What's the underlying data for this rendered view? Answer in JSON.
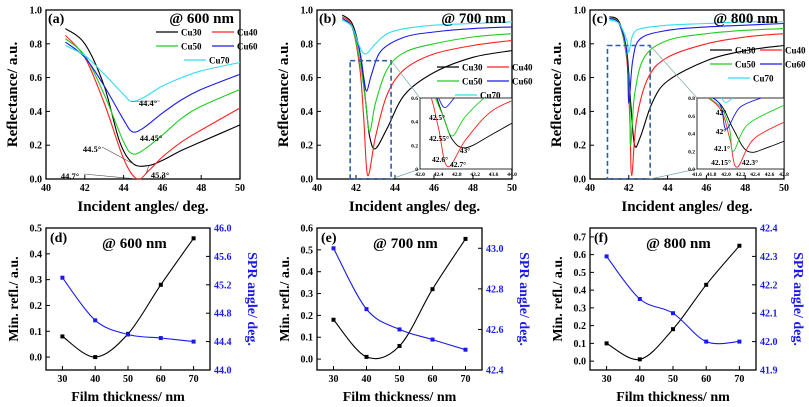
{
  "colors": {
    "Cu30": "#000000",
    "Cu40": "#ff2020",
    "Cu50": "#22cc22",
    "Cu60": "#1a1aee",
    "Cu70": "#33ddee",
    "refl": "#000000",
    "spr": "#1a1aee",
    "inset_box": "#2f5f9f"
  },
  "chart_data": [
    {
      "id": "a",
      "type": "line",
      "label": "(a)",
      "title": "@ 600 nm",
      "xlabel": "Incident angles/ deg.",
      "ylabel": "Reflectance/ a.u.",
      "xlim": [
        40,
        50
      ],
      "ylim": [
        0,
        1.0
      ],
      "xticks": [
        40,
        42,
        44,
        46,
        48,
        50
      ],
      "yticks": [
        0.0,
        0.2,
        0.4,
        0.6,
        0.8,
        1.0
      ],
      "series": [
        {
          "name": "Cu30",
          "x": [
            41,
            42,
            43,
            43.8,
            44.5,
            45.3,
            46,
            47,
            48,
            50
          ],
          "y": [
            0.89,
            0.8,
            0.55,
            0.22,
            0.09,
            0.08,
            0.11,
            0.17,
            0.22,
            0.32
          ]
        },
        {
          "name": "Cu40",
          "x": [
            41,
            42,
            43,
            44,
            44.7,
            45.3,
            46,
            47,
            48,
            50
          ],
          "y": [
            0.85,
            0.72,
            0.45,
            0.12,
            0.0,
            0.05,
            0.13,
            0.22,
            0.29,
            0.42
          ]
        },
        {
          "name": "Cu50",
          "x": [
            41,
            42,
            43,
            44,
            44.45,
            45,
            46,
            47,
            48,
            50
          ],
          "y": [
            0.83,
            0.73,
            0.5,
            0.22,
            0.15,
            0.17,
            0.26,
            0.36,
            0.43,
            0.53
          ]
        },
        {
          "name": "Cu60",
          "x": [
            41,
            42,
            43,
            44,
            44.45,
            45,
            46,
            47,
            48,
            50
          ],
          "y": [
            0.81,
            0.72,
            0.55,
            0.35,
            0.28,
            0.3,
            0.39,
            0.47,
            0.53,
            0.62
          ]
        },
        {
          "name": "Cu70",
          "x": [
            41,
            42,
            43,
            44,
            44.4,
            45,
            46,
            47,
            48,
            50
          ],
          "y": [
            0.79,
            0.73,
            0.62,
            0.5,
            0.46,
            0.48,
            0.55,
            0.6,
            0.64,
            0.69
          ]
        }
      ],
      "legend": [
        "Cu30",
        "Cu40",
        "Cu50",
        "Cu60",
        "Cu70"
      ],
      "annotations": [
        {
          "text": "44.4°",
          "x": 44.4,
          "y": 0.43
        },
        {
          "text": "44.45°",
          "x": 44.45,
          "y": 0.25
        },
        {
          "text": "44.5°",
          "x": 44.5,
          "y": 0.14
        },
        {
          "text": "44.7°",
          "x": 44.7,
          "y": 0.03
        },
        {
          "text": "45.3°",
          "x": 45.3,
          "y": 0.03
        }
      ]
    },
    {
      "id": "b",
      "type": "line",
      "label": "(b)",
      "title": "@ 700 nm",
      "xlabel": "Incident angles/ deg.",
      "ylabel": "Reflectance/ a.u.",
      "xlim": [
        40,
        50
      ],
      "ylim": [
        0,
        1.0
      ],
      "xticks": [
        40,
        42,
        44,
        46,
        48,
        50
      ],
      "yticks": [
        0.0,
        0.2,
        0.4,
        0.6,
        0.8,
        1.0
      ],
      "series": [
        {
          "name": "Cu30",
          "x": [
            41.3,
            41.8,
            42.2,
            42.5,
            42.7,
            43,
            43.6,
            44.5,
            46,
            48,
            50
          ],
          "y": [
            0.97,
            0.92,
            0.75,
            0.45,
            0.25,
            0.18,
            0.3,
            0.5,
            0.63,
            0.72,
            0.76
          ]
        },
        {
          "name": "Cu40",
          "x": [
            41.3,
            41.8,
            42.2,
            42.4,
            42.6,
            43,
            43.6,
            44.5,
            46,
            48,
            50
          ],
          "y": [
            0.96,
            0.9,
            0.65,
            0.35,
            0.02,
            0.25,
            0.5,
            0.65,
            0.74,
            0.79,
            0.82
          ]
        },
        {
          "name": "Cu50",
          "x": [
            41.3,
            41.8,
            42.2,
            42.5,
            42.7,
            43,
            43.6,
            44.5,
            46,
            48,
            50
          ],
          "y": [
            0.95,
            0.9,
            0.7,
            0.45,
            0.28,
            0.45,
            0.65,
            0.75,
            0.8,
            0.84,
            0.86
          ]
        },
        {
          "name": "Cu60",
          "x": [
            41.3,
            41.8,
            42.2,
            42.4,
            42.55,
            42.8,
            43.3,
            44.5,
            46,
            48,
            50
          ],
          "y": [
            0.95,
            0.9,
            0.75,
            0.6,
            0.52,
            0.62,
            0.76,
            0.84,
            0.87,
            0.89,
            0.9
          ]
        },
        {
          "name": "Cu70",
          "x": [
            41.3,
            41.8,
            42.2,
            42.5,
            43,
            43.6,
            44.5,
            46,
            48,
            50
          ],
          "y": [
            0.94,
            0.9,
            0.78,
            0.74,
            0.8,
            0.86,
            0.89,
            0.91,
            0.92,
            0.93
          ]
        }
      ],
      "legend": [
        "Cu30",
        "Cu40",
        "Cu50",
        "Cu60",
        "Cu70"
      ],
      "inset": {
        "xlim": [
          42.0,
          44.0
        ],
        "ylim": [
          0,
          0.6
        ],
        "xticks": [
          "42.0",
          "42.4",
          "42.8",
          "43.2",
          "43.6",
          "44.0"
        ],
        "yticks": [
          "0",
          "0.2",
          "0.4",
          "0.6"
        ],
        "annotations": [
          "42.5°",
          "42.55°",
          "42.6°",
          "42.7°",
          "43°"
        ]
      }
    },
    {
      "id": "c",
      "type": "line",
      "label": "(c)",
      "title": "@ 800 nm",
      "xlabel": "Incident angles/ deg.",
      "ylabel": "Reflectance/ a.u.",
      "xlim": [
        40,
        50
      ],
      "ylim": [
        0,
        1.0
      ],
      "xticks": [
        40,
        42,
        44,
        46,
        48,
        50
      ],
      "yticks": [
        0.0,
        0.2,
        0.4,
        0.6,
        0.8,
        1.0
      ],
      "series": [
        {
          "name": "Cu30",
          "x": [
            41.0,
            41.5,
            41.9,
            42.1,
            42.3,
            42.6,
            43.2,
            44,
            46,
            48,
            50
          ],
          "y": [
            0.96,
            0.93,
            0.75,
            0.45,
            0.2,
            0.25,
            0.45,
            0.58,
            0.7,
            0.76,
            0.79
          ]
        },
        {
          "name": "Cu40",
          "x": [
            41.0,
            41.5,
            41.9,
            42.05,
            42.15,
            42.4,
            43,
            44,
            46,
            48,
            50
          ],
          "y": [
            0.95,
            0.92,
            0.7,
            0.35,
            0.02,
            0.35,
            0.6,
            0.72,
            0.8,
            0.84,
            0.86
          ]
        },
        {
          "name": "Cu50",
          "x": [
            41.0,
            41.5,
            41.9,
            42.05,
            42.1,
            42.3,
            42.8,
            44,
            46,
            48,
            50
          ],
          "y": [
            0.95,
            0.92,
            0.72,
            0.45,
            0.2,
            0.5,
            0.72,
            0.82,
            0.86,
            0.88,
            0.89
          ]
        },
        {
          "name": "Cu60",
          "x": [
            41.0,
            41.5,
            41.9,
            42.0,
            42.2,
            42.6,
            44,
            46,
            48,
            50
          ],
          "y": [
            0.95,
            0.92,
            0.75,
            0.45,
            0.7,
            0.83,
            0.88,
            0.9,
            0.91,
            0.92
          ]
        },
        {
          "name": "Cu70",
          "x": [
            41.0,
            41.5,
            41.9,
            42.0,
            42.2,
            42.6,
            44,
            46,
            48,
            50
          ],
          "y": [
            0.94,
            0.92,
            0.82,
            0.75,
            0.85,
            0.89,
            0.91,
            0.92,
            0.93,
            0.93
          ]
        }
      ],
      "legend": [
        "Cu30",
        "Cu40",
        "Cu50",
        "Cu60",
        "Cu70"
      ],
      "inset": {
        "xlim": [
          41.6,
          42.8
        ],
        "ylim": [
          0,
          0.8
        ],
        "xticks": [
          "41.6",
          "41.8",
          "42.0",
          "42.2",
          "42.4",
          "42.6",
          "42.8"
        ],
        "yticks": [
          "0.0",
          "0.2",
          "0.4",
          "0.6",
          "0.8"
        ],
        "annotations": [
          "42°",
          "42°",
          "42.1°",
          "42.15°",
          "42.3°"
        ]
      }
    },
    {
      "id": "d",
      "type": "line",
      "label": "(d)",
      "title": "@ 600 nm",
      "xlabel": "Film thickness/ nm",
      "ylabel": "Min. refl./ a.u.",
      "y2label": "SPR angle/ deg.",
      "x": [
        30,
        40,
        50,
        60,
        70
      ],
      "xlim": [
        25,
        75
      ],
      "ylim": [
        -0.05,
        0.5
      ],
      "y2lim": [
        44.0,
        46.0
      ],
      "xticks": [
        30,
        40,
        50,
        60,
        70
      ],
      "yticks": [
        "0.0",
        "0.1",
        "0.2",
        "0.3",
        "0.4",
        "0.5"
      ],
      "y2ticks": [
        "44.0",
        "44.4",
        "44.8",
        "45.2",
        "45.6",
        "46.0"
      ],
      "series": [
        {
          "name": "Min. refl.",
          "axis": "left",
          "values": [
            0.08,
            0.0,
            0.09,
            0.28,
            0.46
          ]
        },
        {
          "name": "SPR angle",
          "axis": "right",
          "values": [
            45.3,
            44.7,
            44.5,
            44.45,
            44.4
          ]
        }
      ]
    },
    {
      "id": "e",
      "type": "line",
      "label": "(e)",
      "title": "@ 700 nm",
      "xlabel": "Film thickness/ nm",
      "ylabel": "Min. refl./ a.u.",
      "y2label": "SPR angle/ deg.",
      "x": [
        30,
        40,
        50,
        60,
        70
      ],
      "xlim": [
        25,
        75
      ],
      "ylim": [
        -0.05,
        0.6
      ],
      "y2lim": [
        42.4,
        43.1
      ],
      "xticks": [
        30,
        40,
        50,
        60,
        70
      ],
      "yticks": [
        "0.0",
        "0.1",
        "0.2",
        "0.3",
        "0.4",
        "0.5",
        "0.6"
      ],
      "y2ticks": [
        "42.4",
        "42.6",
        "42.8",
        "43.0"
      ],
      "series": [
        {
          "name": "Min. refl.",
          "axis": "left",
          "values": [
            0.18,
            0.01,
            0.06,
            0.32,
            0.55
          ]
        },
        {
          "name": "SPR angle",
          "axis": "right",
          "values": [
            43.0,
            42.7,
            42.6,
            42.55,
            42.5
          ]
        }
      ]
    },
    {
      "id": "f",
      "type": "line",
      "label": "(f)",
      "title": "@ 800 nm",
      "xlabel": "Film thickness/ nm",
      "ylabel": "Min. refl./ a.u.",
      "y2label": "SPR angle/ deg.",
      "x": [
        30,
        40,
        50,
        60,
        70
      ],
      "xlim": [
        25,
        75
      ],
      "ylim": [
        -0.05,
        0.75
      ],
      "y2lim": [
        41.9,
        42.4
      ],
      "xticks": [
        30,
        40,
        50,
        60,
        70
      ],
      "yticks": [
        "0.0",
        "0.1",
        "0.2",
        "0.3",
        "0.4",
        "0.5",
        "0.6",
        "0.7"
      ],
      "y2ticks": [
        "41.9",
        "42.0",
        "42.1",
        "42.2",
        "42.3",
        "42.4"
      ],
      "series": [
        {
          "name": "Min. refl.",
          "axis": "left",
          "values": [
            0.1,
            0.01,
            0.18,
            0.43,
            0.65
          ]
        },
        {
          "name": "SPR angle",
          "axis": "right",
          "values": [
            42.3,
            42.15,
            42.1,
            42.0,
            42.0
          ]
        }
      ]
    }
  ]
}
